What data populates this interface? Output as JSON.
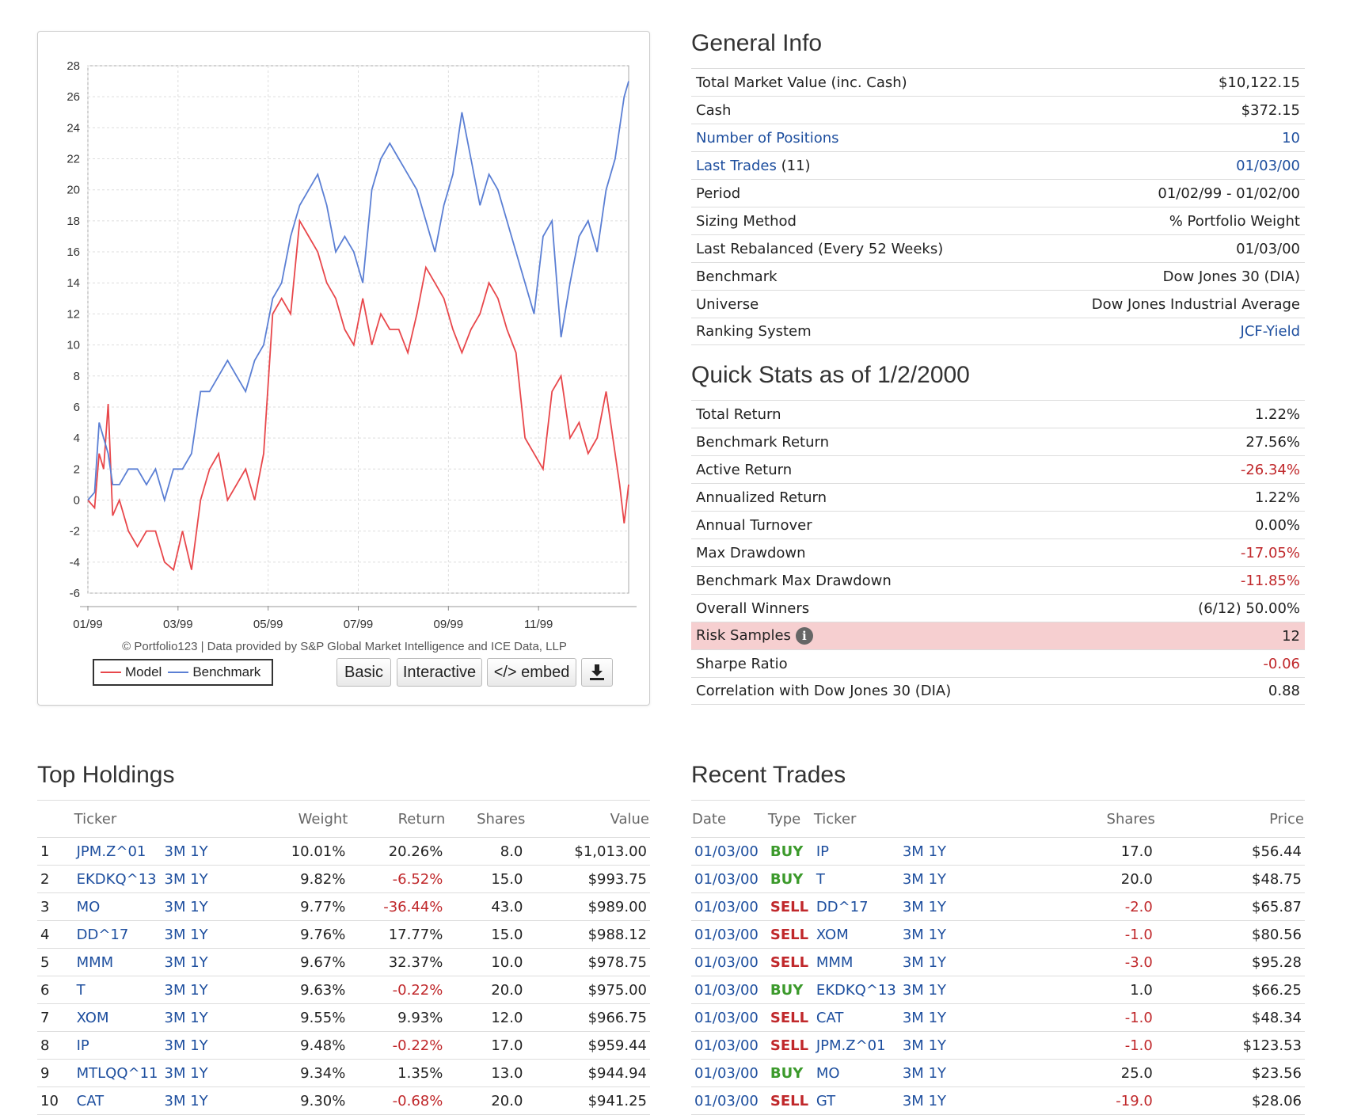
{
  "chart": {
    "credit": "© Portfolio123 | Data provided by S&P Global Market Intelligence and ICE Data, LLP",
    "legend": {
      "model": "Model",
      "benchmark": "Benchmark"
    },
    "buttons": {
      "basic": "Basic",
      "interactive": "Interactive",
      "embed": "</> embed",
      "download_icon": "download-icon"
    },
    "colors": {
      "model": "#e8474b",
      "benchmark": "#5b7fd4"
    }
  },
  "chart_data": {
    "type": "line",
    "xlabel": "",
    "ylabel": "",
    "ylim": [
      -6,
      28
    ],
    "yticks": [
      "28",
      "26",
      "24",
      "22",
      "20",
      "18",
      "16",
      "14",
      "12",
      "10",
      "8",
      "6",
      "4",
      "2",
      "0",
      "-2",
      "-4",
      "-6"
    ],
    "xticks": [
      "01/99",
      "03/99",
      "05/99",
      "07/99",
      "09/99",
      "11/99"
    ],
    "x_range_months": [
      0,
      12
    ],
    "grid": true,
    "series": [
      {
        "name": "Model",
        "x": [
          0,
          0.15,
          0.25,
          0.35,
          0.45,
          0.55,
          0.7,
          0.9,
          1.1,
          1.3,
          1.5,
          1.7,
          1.9,
          2.1,
          2.3,
          2.5,
          2.7,
          2.9,
          3.1,
          3.3,
          3.5,
          3.7,
          3.9,
          4.1,
          4.3,
          4.5,
          4.7,
          4.9,
          5.1,
          5.3,
          5.5,
          5.7,
          5.9,
          6.1,
          6.3,
          6.5,
          6.7,
          6.9,
          7.1,
          7.3,
          7.5,
          7.7,
          7.9,
          8.1,
          8.3,
          8.5,
          8.7,
          8.9,
          9.1,
          9.3,
          9.5,
          9.7,
          9.9,
          10.1,
          10.3,
          10.5,
          10.7,
          10.9,
          11.1,
          11.3,
          11.5,
          11.7,
          11.8,
          11.9,
          12
        ],
        "values": [
          0,
          -0.5,
          3,
          2,
          6.2,
          -1,
          0,
          -2,
          -3,
          -2,
          -2,
          -4,
          -4.5,
          -2,
          -4.5,
          0,
          2,
          3,
          0,
          1,
          2,
          0,
          3,
          12,
          13,
          12,
          18,
          17,
          16,
          14,
          13,
          11,
          10,
          13,
          10,
          12,
          11,
          11,
          9.5,
          12,
          15,
          14,
          13,
          11,
          9.5,
          11,
          12,
          14,
          13,
          11,
          9.5,
          4,
          3,
          2,
          7,
          8,
          4,
          5,
          3,
          4,
          7,
          3,
          1,
          -1.5,
          1
        ]
      },
      {
        "name": "Benchmark",
        "x": [
          0,
          0.15,
          0.25,
          0.35,
          0.45,
          0.55,
          0.7,
          0.9,
          1.1,
          1.3,
          1.5,
          1.7,
          1.9,
          2.1,
          2.3,
          2.5,
          2.7,
          2.9,
          3.1,
          3.3,
          3.5,
          3.7,
          3.9,
          4.1,
          4.3,
          4.5,
          4.7,
          4.9,
          5.1,
          5.3,
          5.5,
          5.7,
          5.9,
          6.1,
          6.3,
          6.5,
          6.7,
          6.9,
          7.1,
          7.3,
          7.5,
          7.7,
          7.9,
          8.1,
          8.3,
          8.5,
          8.7,
          8.9,
          9.1,
          9.3,
          9.5,
          9.7,
          9.9,
          10.1,
          10.3,
          10.5,
          10.7,
          10.9,
          11.1,
          11.3,
          11.5,
          11.7,
          11.8,
          11.9,
          12
        ],
        "values": [
          0,
          0.5,
          5,
          4,
          3,
          1,
          1,
          2,
          2,
          1,
          2,
          0,
          2,
          2,
          3,
          7,
          7,
          8,
          9,
          8,
          7,
          9,
          10,
          13,
          14,
          17,
          19,
          20,
          21,
          19,
          16,
          17,
          16,
          14,
          20,
          22,
          23,
          22,
          21,
          20,
          18,
          16,
          19,
          21,
          25,
          22,
          19,
          21,
          20,
          18,
          16,
          14,
          12,
          17,
          18,
          10.5,
          14,
          17,
          18,
          16,
          20,
          22,
          24,
          26,
          27
        ]
      }
    ]
  },
  "general": {
    "title": "General Info",
    "rows": [
      {
        "label": "Total Market Value (inc. Cash)",
        "value": "$10,122.15"
      },
      {
        "label": "Cash",
        "value": "$372.15"
      },
      {
        "label": "Number of Positions",
        "value": "10"
      },
      {
        "label": "Last Trades",
        "label_extra": " (11)",
        "value": "01/03/00"
      },
      {
        "label": "Period",
        "value": "01/02/99 - 01/02/00"
      },
      {
        "label": "Sizing Method",
        "value": "% Portfolio Weight"
      },
      {
        "label": "Last Rebalanced (Every 52 Weeks)",
        "value": "01/03/00"
      },
      {
        "label": "Benchmark",
        "value": "Dow Jones 30 (DIA)"
      },
      {
        "label": "Universe",
        "value": "Dow Jones Industrial Average"
      },
      {
        "label": "Ranking System",
        "value": "JCF-Yield"
      }
    ]
  },
  "quick": {
    "title": "Quick Stats as of 1/2/2000",
    "rows": [
      {
        "label": "Total Return",
        "value": "1.22%"
      },
      {
        "label": "Benchmark Return",
        "value": "27.56%"
      },
      {
        "label": "Active Return",
        "value": "-26.34%"
      },
      {
        "label": "Annualized Return",
        "value": "1.22%"
      },
      {
        "label": "Annual Turnover",
        "value": "0.00%"
      },
      {
        "label": "Max Drawdown",
        "value": "-17.05%"
      },
      {
        "label": "Benchmark Max Drawdown",
        "value": "-11.85%"
      },
      {
        "label": "Overall Winners",
        "value": "(6/12) 50.00%"
      },
      {
        "label": "Risk Samples",
        "value": "12",
        "icon": "info-icon",
        "highlight": "#f6cfd0"
      },
      {
        "label": "Sharpe Ratio",
        "value": "-0.06"
      },
      {
        "label": "Correlation with Dow Jones 30 (DIA)",
        "value": "0.88"
      }
    ]
  },
  "holdings": {
    "title": "Top Holdings",
    "headers": {
      "ticker": "Ticker",
      "weight": "Weight",
      "return": "Return",
      "shares": "Shares",
      "value": "Value"
    },
    "rows": [
      {
        "n": "1",
        "ticker": "JPM.Z^01",
        "m3": "3M",
        "y1": "1Y",
        "weight": "10.01%",
        "ret": "20.26%",
        "shares": "8.0",
        "value": "$1,013.00"
      },
      {
        "n": "2",
        "ticker": "EKDKQ^13",
        "m3": "3M",
        "y1": "1Y",
        "weight": "9.82%",
        "ret": "-6.52%",
        "shares": "15.0",
        "value": "$993.75"
      },
      {
        "n": "3",
        "ticker": "MO",
        "m3": "3M",
        "y1": "1Y",
        "weight": "9.77%",
        "ret": "-36.44%",
        "shares": "43.0",
        "value": "$989.00"
      },
      {
        "n": "4",
        "ticker": "DD^17",
        "m3": "3M",
        "y1": "1Y",
        "weight": "9.76%",
        "ret": "17.77%",
        "shares": "15.0",
        "value": "$988.12"
      },
      {
        "n": "5",
        "ticker": "MMM",
        "m3": "3M",
        "y1": "1Y",
        "weight": "9.67%",
        "ret": "32.37%",
        "shares": "10.0",
        "value": "$978.75"
      },
      {
        "n": "6",
        "ticker": "T",
        "m3": "3M",
        "y1": "1Y",
        "weight": "9.63%",
        "ret": "-0.22%",
        "shares": "20.0",
        "value": "$975.00"
      },
      {
        "n": "7",
        "ticker": "XOM",
        "m3": "3M",
        "y1": "1Y",
        "weight": "9.55%",
        "ret": "9.93%",
        "shares": "12.0",
        "value": "$966.75"
      },
      {
        "n": "8",
        "ticker": "IP",
        "m3": "3M",
        "y1": "1Y",
        "weight": "9.48%",
        "ret": "-0.22%",
        "shares": "17.0",
        "value": "$959.44"
      },
      {
        "n": "9",
        "ticker": "MTLQQ^11",
        "m3": "3M",
        "y1": "1Y",
        "weight": "9.34%",
        "ret": "1.35%",
        "shares": "13.0",
        "value": "$944.94"
      },
      {
        "n": "10",
        "ticker": "CAT",
        "m3": "3M",
        "y1": "1Y",
        "weight": "9.30%",
        "ret": "-0.68%",
        "shares": "20.0",
        "value": "$941.25"
      }
    ]
  },
  "trades": {
    "title": "Recent Trades",
    "headers": {
      "date": "Date",
      "type": "Type",
      "ticker": "Ticker",
      "shares": "Shares",
      "price": "Price"
    },
    "rows": [
      {
        "date": "01/03/00",
        "type": "BUY",
        "ticker": "IP",
        "m3": "3M",
        "y1": "1Y",
        "shares": "17.0",
        "price": "$56.44"
      },
      {
        "date": "01/03/00",
        "type": "BUY",
        "ticker": "T",
        "m3": "3M",
        "y1": "1Y",
        "shares": "20.0",
        "price": "$48.75"
      },
      {
        "date": "01/03/00",
        "type": "SELL",
        "ticker": "DD^17",
        "m3": "3M",
        "y1": "1Y",
        "shares": "-2.0",
        "price": "$65.87"
      },
      {
        "date": "01/03/00",
        "type": "SELL",
        "ticker": "XOM",
        "m3": "3M",
        "y1": "1Y",
        "shares": "-1.0",
        "price": "$80.56"
      },
      {
        "date": "01/03/00",
        "type": "SELL",
        "ticker": "MMM",
        "m3": "3M",
        "y1": "1Y",
        "shares": "-3.0",
        "price": "$95.28"
      },
      {
        "date": "01/03/00",
        "type": "BUY",
        "ticker": "EKDKQ^13",
        "m3": "3M",
        "y1": "1Y",
        "shares": "1.0",
        "price": "$66.25"
      },
      {
        "date": "01/03/00",
        "type": "SELL",
        "ticker": "CAT",
        "m3": "3M",
        "y1": "1Y",
        "shares": "-1.0",
        "price": "$48.34"
      },
      {
        "date": "01/03/00",
        "type": "SELL",
        "ticker": "JPM.Z^01",
        "m3": "3M",
        "y1": "1Y",
        "shares": "-1.0",
        "price": "$123.53"
      },
      {
        "date": "01/03/00",
        "type": "BUY",
        "ticker": "MO",
        "m3": "3M",
        "y1": "1Y",
        "shares": "25.0",
        "price": "$23.56"
      },
      {
        "date": "01/03/00",
        "type": "SELL",
        "ticker": "GT",
        "m3": "3M",
        "y1": "1Y",
        "shares": "-19.0",
        "price": "$28.06"
      }
    ]
  }
}
